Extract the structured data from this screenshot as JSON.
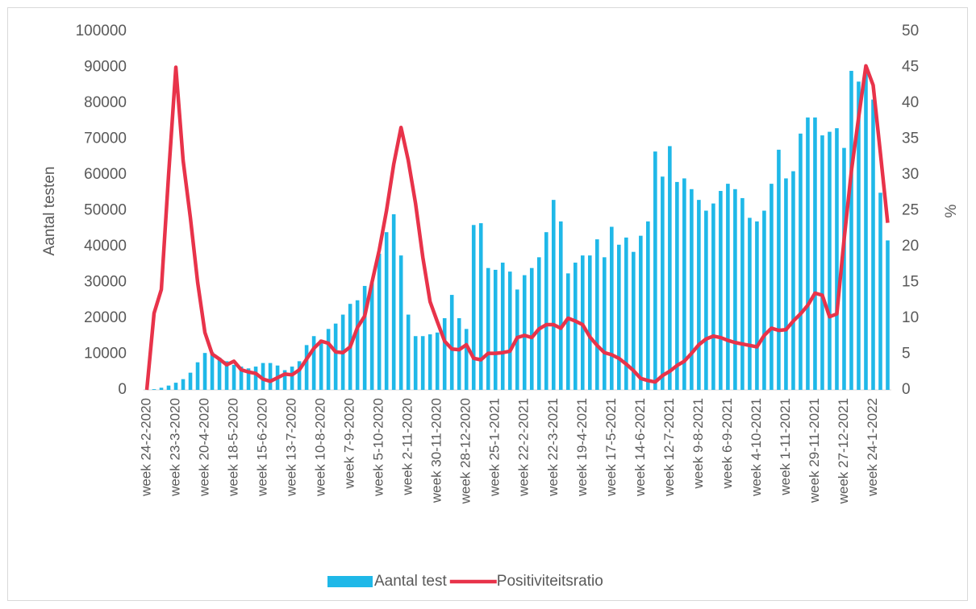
{
  "chart_data": {
    "type": "bar-line",
    "y_label": "Aantal testen",
    "y2_label": "%",
    "categories": [
      "week 24-2-2020",
      null,
      null,
      null,
      "week 23-3-2020",
      null,
      null,
      null,
      "week 20-4-2020",
      null,
      null,
      null,
      "week 18-5-2020",
      null,
      null,
      null,
      "week 15-6-2020",
      null,
      null,
      null,
      "week 13-7-2020",
      null,
      null,
      null,
      "week 10-8-2020",
      null,
      null,
      null,
      "week 7-9-2020",
      null,
      null,
      null,
      "week 5-10-2020",
      null,
      null,
      null,
      "week 2-11-2020",
      null,
      null,
      null,
      "week 30-11-2020",
      null,
      null,
      null,
      "week 28-12-2020",
      null,
      null,
      null,
      "week 25-1-2021",
      null,
      null,
      null,
      "week 22-2-2021",
      null,
      null,
      null,
      "week 22-3-2021",
      null,
      null,
      null,
      "week 19-4-2021",
      null,
      null,
      null,
      "week 17-5-2021",
      null,
      null,
      null,
      "week 14-6-2021",
      null,
      null,
      null,
      "week 12-7-2021",
      null,
      null,
      null,
      "week 9-8-2021",
      null,
      null,
      null,
      "week 6-9-2021",
      null,
      null,
      null,
      "week 4-10-2021",
      null,
      null,
      null,
      "week 1-11-2021",
      null,
      null,
      null,
      "week 29-11-2021",
      null,
      null,
      null,
      "week 27-12-2021",
      null,
      null,
      null,
      "week 24-1-2022",
      null,
      null
    ],
    "series": [
      {
        "name": "Aantal test",
        "color": "#1fb8e8",
        "axis": "y",
        "values": [
          0,
          200,
          600,
          1200,
          2000,
          3000,
          4800,
          7700,
          10300,
          10500,
          9000,
          8000,
          7000,
          6500,
          6000,
          6500,
          7500,
          7500,
          6800,
          5500,
          6500,
          8000,
          12500,
          15000,
          14000,
          17000,
          18500,
          21000,
          24000,
          25000,
          29000,
          30000,
          38000,
          44000,
          49000,
          37500,
          21000,
          15000,
          15000,
          15500,
          16000,
          20000,
          26500,
          20000,
          17000,
          46000,
          46500,
          34000,
          33500,
          35500,
          33000,
          28000,
          32000,
          34000,
          37000,
          44000,
          53000,
          47000,
          32500,
          35500,
          37500,
          37500,
          42000,
          37000,
          45500,
          40500,
          42500,
          38500,
          43000,
          47000,
          66500,
          59500,
          68000,
          58000,
          59000,
          56000,
          53000,
          50000,
          52000,
          55500,
          57500,
          56000,
          53500,
          48000,
          47000,
          50000,
          57500,
          67000,
          59000,
          61000,
          71500,
          76000,
          76000,
          71000,
          72000,
          73000,
          67500,
          89000,
          86000,
          90000,
          81000,
          55000,
          41700
        ]
      },
      {
        "name": "Positiviteitsratio",
        "color": "#e8334a",
        "axis": "y2",
        "values": [
          0,
          10.7,
          14,
          30,
          45,
          32,
          24,
          15,
          8,
          5,
          4.3,
          3.5,
          4,
          2.8,
          2.5,
          2.3,
          1.5,
          1.2,
          1.7,
          2.2,
          2.1,
          2.8,
          4.3,
          5.8,
          6.8,
          6.5,
          5.3,
          5.2,
          6,
          8.7,
          10.3,
          15,
          19.5,
          25,
          31.5,
          36.6,
          32,
          26,
          18.5,
          12.3,
          9.5,
          6.8,
          5.7,
          5.6,
          6.3,
          4.4,
          4.2,
          5.1,
          5.1,
          5.2,
          5.4,
          7.3,
          7.6,
          7.3,
          8.5,
          9.1,
          9.1,
          8.6,
          10,
          9.6,
          9.1,
          7.4,
          6.2,
          5.2,
          4.9,
          4.4,
          3.6,
          2.7,
          1.6,
          1.3,
          1.1,
          2,
          2.6,
          3.4,
          4,
          5.1,
          6.3,
          7.1,
          7.5,
          7.3,
          6.9,
          6.6,
          6.4,
          6.2,
          6,
          7.6,
          8.6,
          8.3,
          8.4,
          9.6,
          10.6,
          11.8,
          13.5,
          13.2,
          10.2,
          10.6,
          21,
          30.5,
          38,
          45.2,
          42.5,
          33,
          23.3
        ]
      }
    ],
    "ylim": [
      0,
      100000
    ],
    "yticks": [
      0,
      10000,
      20000,
      30000,
      40000,
      50000,
      60000,
      70000,
      80000,
      90000,
      100000
    ],
    "y2lim": [
      0,
      50
    ],
    "y2ticks": [
      0,
      5,
      10,
      15,
      20,
      25,
      30,
      35,
      40,
      45,
      50
    ],
    "legend": "bottom"
  }
}
